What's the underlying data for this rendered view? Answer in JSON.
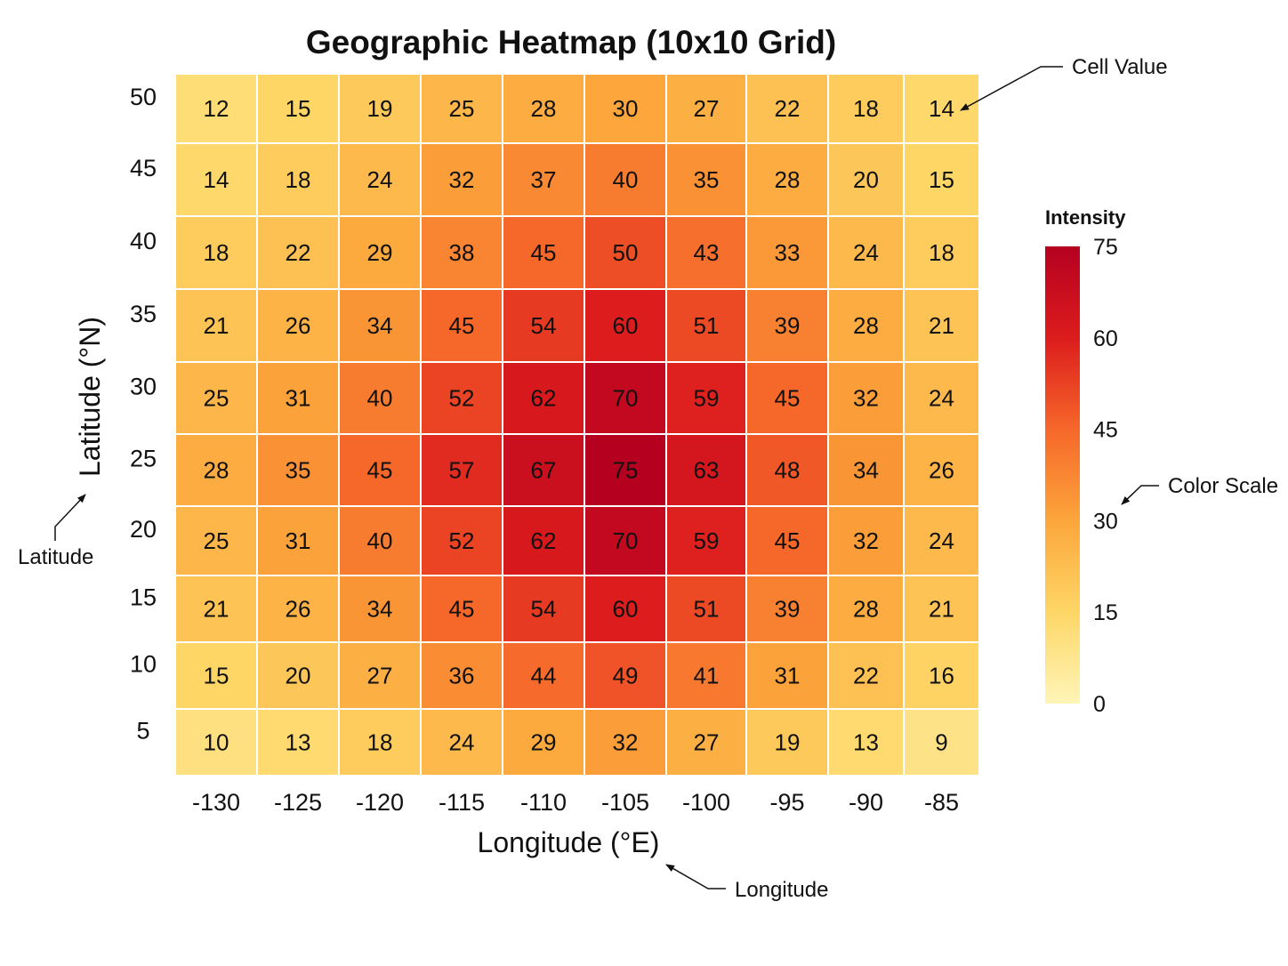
{
  "chart_data": {
    "type": "heatmap",
    "title": "Geographic Heatmap (10x10 Grid)",
    "xlabel": "Longitude (°E)",
    "ylabel": "Latitude (°N)",
    "x": [
      -130,
      -125,
      -120,
      -115,
      -110,
      -105,
      -100,
      -95,
      -90,
      -85
    ],
    "y": [
      50,
      45,
      40,
      35,
      30,
      25,
      20,
      15,
      10,
      5
    ],
    "x_tick_labels": [
      "-130",
      "-125",
      "-120",
      "-115",
      "-110",
      "-105",
      "-100",
      "-95",
      "-90",
      "-85"
    ],
    "y_tick_labels": [
      "50",
      "45",
      "40",
      "35",
      "30",
      "25",
      "20",
      "15",
      "10",
      "5"
    ],
    "values": [
      [
        12,
        15,
        19,
        25,
        28,
        30,
        27,
        22,
        18,
        14
      ],
      [
        14,
        18,
        24,
        32,
        37,
        40,
        35,
        28,
        20,
        15
      ],
      [
        18,
        22,
        29,
        38,
        45,
        50,
        43,
        33,
        24,
        18
      ],
      [
        21,
        26,
        34,
        45,
        54,
        60,
        51,
        39,
        28,
        21
      ],
      [
        25,
        31,
        40,
        52,
        62,
        70,
        59,
        45,
        32,
        24
      ],
      [
        28,
        35,
        45,
        57,
        67,
        75,
        63,
        48,
        34,
        26
      ],
      [
        25,
        31,
        40,
        52,
        62,
        70,
        59,
        45,
        32,
        24
      ],
      [
        21,
        26,
        34,
        45,
        54,
        60,
        51,
        39,
        28,
        21
      ],
      [
        15,
        20,
        27,
        36,
        44,
        49,
        41,
        31,
        22,
        16
      ],
      [
        10,
        13,
        18,
        24,
        29,
        32,
        27,
        19,
        13,
        9
      ]
    ],
    "colorbar": {
      "title": "Intensity",
      "range": [
        0,
        75
      ],
      "ticks": [
        75,
        60,
        45,
        30,
        15,
        0
      ],
      "colors": [
        "#fff5b8",
        "#fed666",
        "#fca63b",
        "#f6672a",
        "#dc1c1d",
        "#b50020"
      ]
    },
    "annotations": {
      "cell_value": "Cell Value",
      "color_scale": "Color Scale",
      "latitude": "Latitude",
      "longitude": "Longitude"
    },
    "grid": false,
    "legend_position": "right"
  }
}
